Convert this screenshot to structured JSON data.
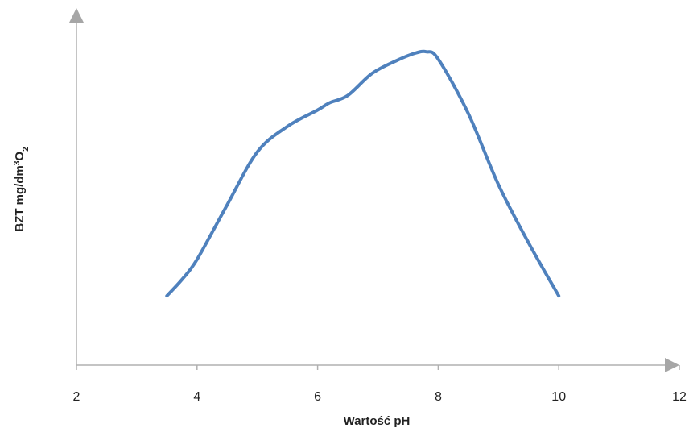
{
  "chart_data": {
    "type": "line",
    "title": "",
    "xlabel": "Wartość pH",
    "ylabel": {
      "main": "BZT mg/dm",
      "sup": "3",
      "unit": "O",
      "sub": "2"
    },
    "xlim": [
      2,
      12
    ],
    "x_ticks": [
      "2",
      "4",
      "6",
      "8",
      "10",
      "12"
    ],
    "y_ticks_shown": false,
    "grid": false,
    "legend": "none",
    "series": [
      {
        "color": "#4f81bd",
        "x": [
          3.5,
          3.75,
          4.0,
          4.5,
          5.0,
          5.5,
          6.0,
          6.2,
          6.5,
          6.9,
          7.3,
          7.6,
          7.8,
          8.0,
          8.5,
          9.0,
          9.5,
          10.0
        ],
        "y": [
          0.0,
          0.09,
          0.2,
          0.5,
          0.79,
          0.93,
          1.02,
          1.06,
          1.1,
          1.22,
          1.29,
          1.33,
          1.34,
          1.3,
          1.0,
          0.61,
          0.29,
          0.0
        ]
      }
    ],
    "ylim": [
      -0.38,
      1.5
    ]
  }
}
